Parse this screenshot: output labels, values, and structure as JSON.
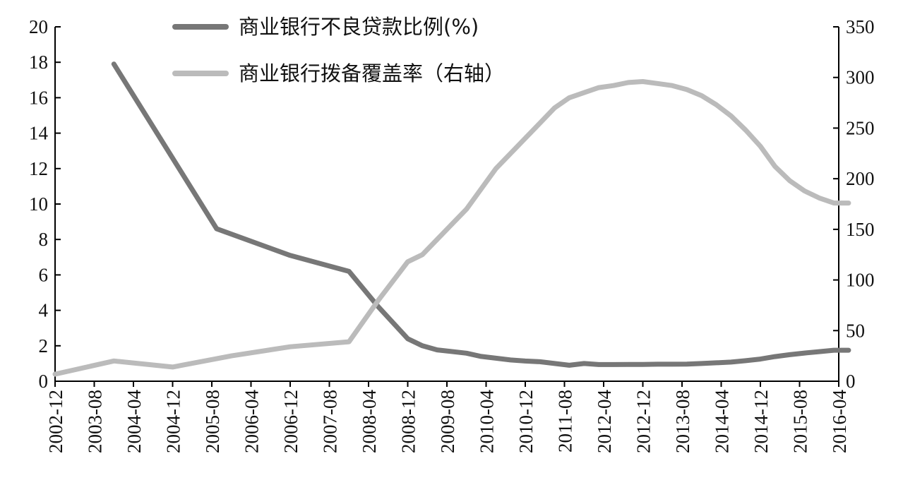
{
  "chart_data": {
    "type": "line",
    "x_categories": [
      "2002-12",
      "2003-08",
      "2004-04",
      "2004-12",
      "2005-08",
      "2006-04",
      "2006-12",
      "2007-08",
      "2008-04",
      "2008-12",
      "2009-08",
      "2010-04",
      "2010-12",
      "2011-08",
      "2012-04",
      "2012-12",
      "2013-08",
      "2014-04",
      "2014-12",
      "2015-08",
      "2016-04"
    ],
    "y_left": {
      "ticks": [
        0,
        2,
        4,
        6,
        8,
        10,
        12,
        14,
        16,
        18,
        20
      ],
      "range": [
        0,
        20
      ]
    },
    "y_right": {
      "ticks": [
        0,
        50,
        100,
        150,
        200,
        250,
        300,
        350
      ],
      "range": [
        0,
        350
      ]
    },
    "grid": false,
    "legend_position": "top-center",
    "series": [
      {
        "name": "商业银行不良贷款比例(%)",
        "axis": "left",
        "color": "#777777",
        "points": [
          [
            "2003-12",
            17.9
          ],
          [
            "2005-09",
            8.6
          ],
          [
            "2006-12",
            7.1
          ],
          [
            "2007-12",
            6.2
          ],
          [
            "2008-06",
            4.2
          ],
          [
            "2008-12",
            2.4
          ],
          [
            "2009-03",
            2.0
          ],
          [
            "2009-06",
            1.77
          ],
          [
            "2009-12",
            1.58
          ],
          [
            "2010-03",
            1.4
          ],
          [
            "2010-06",
            1.3
          ],
          [
            "2010-09",
            1.2
          ],
          [
            "2010-12",
            1.14
          ],
          [
            "2011-03",
            1.1
          ],
          [
            "2011-06",
            1.0
          ],
          [
            "2011-09",
            0.9
          ],
          [
            "2011-12",
            1.0
          ],
          [
            "2012-03",
            0.94
          ],
          [
            "2012-06",
            0.94
          ],
          [
            "2012-09",
            0.95
          ],
          [
            "2012-12",
            0.95
          ],
          [
            "2013-03",
            0.96
          ],
          [
            "2013-06",
            0.96
          ],
          [
            "2013-09",
            0.97
          ],
          [
            "2013-12",
            1.0
          ],
          [
            "2014-03",
            1.04
          ],
          [
            "2014-06",
            1.08
          ],
          [
            "2014-09",
            1.16
          ],
          [
            "2014-12",
            1.25
          ],
          [
            "2015-03",
            1.39
          ],
          [
            "2015-06",
            1.5
          ],
          [
            "2015-09",
            1.59
          ],
          [
            "2015-12",
            1.67
          ],
          [
            "2016-03",
            1.75
          ],
          [
            "2016-06",
            1.75
          ]
        ]
      },
      {
        "name": "商业银行拨备覆盖率（右轴）",
        "axis": "right",
        "color": "#bbbbbb",
        "points": [
          [
            "2002-12",
            7
          ],
          [
            "2003-12",
            20
          ],
          [
            "2004-12",
            14
          ],
          [
            "2005-12",
            25
          ],
          [
            "2006-12",
            34
          ],
          [
            "2007-12",
            39
          ],
          [
            "2008-06",
            80
          ],
          [
            "2008-12",
            118
          ],
          [
            "2009-03",
            125
          ],
          [
            "2009-06",
            140
          ],
          [
            "2009-09",
            155
          ],
          [
            "2009-12",
            170
          ],
          [
            "2010-03",
            190
          ],
          [
            "2010-06",
            210
          ],
          [
            "2010-09",
            225
          ],
          [
            "2010-12",
            240
          ],
          [
            "2011-03",
            255
          ],
          [
            "2011-06",
            270
          ],
          [
            "2011-09",
            280
          ],
          [
            "2011-12",
            285
          ],
          [
            "2012-03",
            290
          ],
          [
            "2012-06",
            292
          ],
          [
            "2012-09",
            295
          ],
          [
            "2012-12",
            296
          ],
          [
            "2013-03",
            294
          ],
          [
            "2013-06",
            292
          ],
          [
            "2013-09",
            288
          ],
          [
            "2013-12",
            282
          ],
          [
            "2014-03",
            273
          ],
          [
            "2014-06",
            262
          ],
          [
            "2014-09",
            248
          ],
          [
            "2014-12",
            232
          ],
          [
            "2015-03",
            212
          ],
          [
            "2015-06",
            198
          ],
          [
            "2015-09",
            188
          ],
          [
            "2015-12",
            181
          ],
          [
            "2016-03",
            176
          ],
          [
            "2016-06",
            176
          ]
        ]
      }
    ]
  }
}
